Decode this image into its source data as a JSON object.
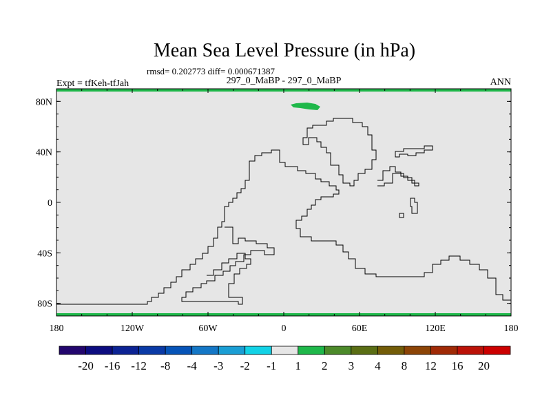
{
  "chart_data": {
    "type": "heatmap",
    "title": "Mean Sea Level Pressure (in hPa)",
    "stats_line": "rmsd= 0.202773 diff= 0.000671387",
    "left_label": "Expt = tfKeh-tfJah",
    "center_label": "297_0_MaBP - 297_0_MaBP",
    "right_label": "ANN",
    "x_ticks": [
      "180",
      "120W",
      "60W",
      "0",
      "60E",
      "120E",
      "180"
    ],
    "x_tick_values": [
      -180,
      -120,
      -60,
      0,
      60,
      120,
      180
    ],
    "y_ticks": [
      "80N",
      "40N",
      "0",
      "40S",
      "80S"
    ],
    "y_tick_values": [
      80,
      40,
      0,
      -40,
      -80
    ],
    "xlim": [
      -180,
      180
    ],
    "ylim": [
      -90,
      90
    ],
    "background_field_color": "#e6e6e6",
    "colorbar": {
      "labels": [
        "-20",
        "-16",
        "-12",
        "-8",
        "-4",
        "-3",
        "-2",
        "-1",
        "1",
        "2",
        "3",
        "4",
        "8",
        "12",
        "16",
        "20"
      ],
      "colors": [
        "#23066e",
        "#0d0d80",
        "#0c2394",
        "#0a3aa6",
        "#0654b8",
        "#1477c6",
        "#1a9ed4",
        "#12d2e6",
        "#e6e6e6",
        "#1fb84a",
        "#4c8a2a",
        "#5a6e14",
        "#735c08",
        "#8c4406",
        "#a02a06",
        "#bb1208",
        "#cc0000"
      ]
    },
    "highlight_region": {
      "value_bin": "1 to 2",
      "color": "#1fb84a",
      "approx_lon": [
        2,
        30
      ],
      "approx_lat": [
        73,
        79
      ]
    },
    "boundary_strips": {
      "color": "#1fb84a",
      "lats": [
        90,
        -90
      ]
    }
  }
}
